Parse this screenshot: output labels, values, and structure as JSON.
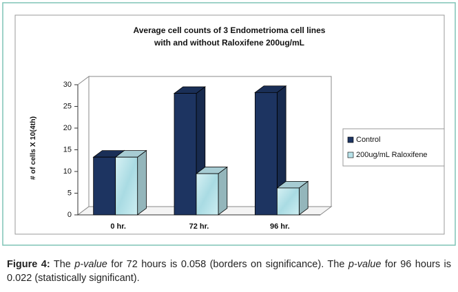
{
  "chart_data": {
    "type": "bar3d",
    "title": [
      "Average cell counts of 3 Endometrioma cell lines",
      "with and without Raloxifene 200ug/mL"
    ],
    "y_label": "# of cells X 10(4th)",
    "categories": [
      "0 hr.",
      "72 hr.",
      "96 hr."
    ],
    "series": [
      {
        "name": "Control",
        "color": "#1d3461",
        "values": [
          13.3,
          28,
          28.2
        ]
      },
      {
        "name": "200ug/mL Raloxifene",
        "color": "#b9e3ea",
        "values": [
          13.3,
          9.5,
          6.2
        ]
      }
    ],
    "ylim": [
      0,
      30
    ],
    "yticks": [
      0,
      5,
      10,
      15,
      20,
      25,
      30
    ],
    "grid": false,
    "legend": "right"
  },
  "caption": {
    "label": "Figure 4:",
    "parts": [
      " The ",
      "p-value",
      " for 72 hours is 0.058 (borders on significance). The ",
      "p-value",
      " for 96 hours is 0.022 (statistically significant)."
    ]
  }
}
